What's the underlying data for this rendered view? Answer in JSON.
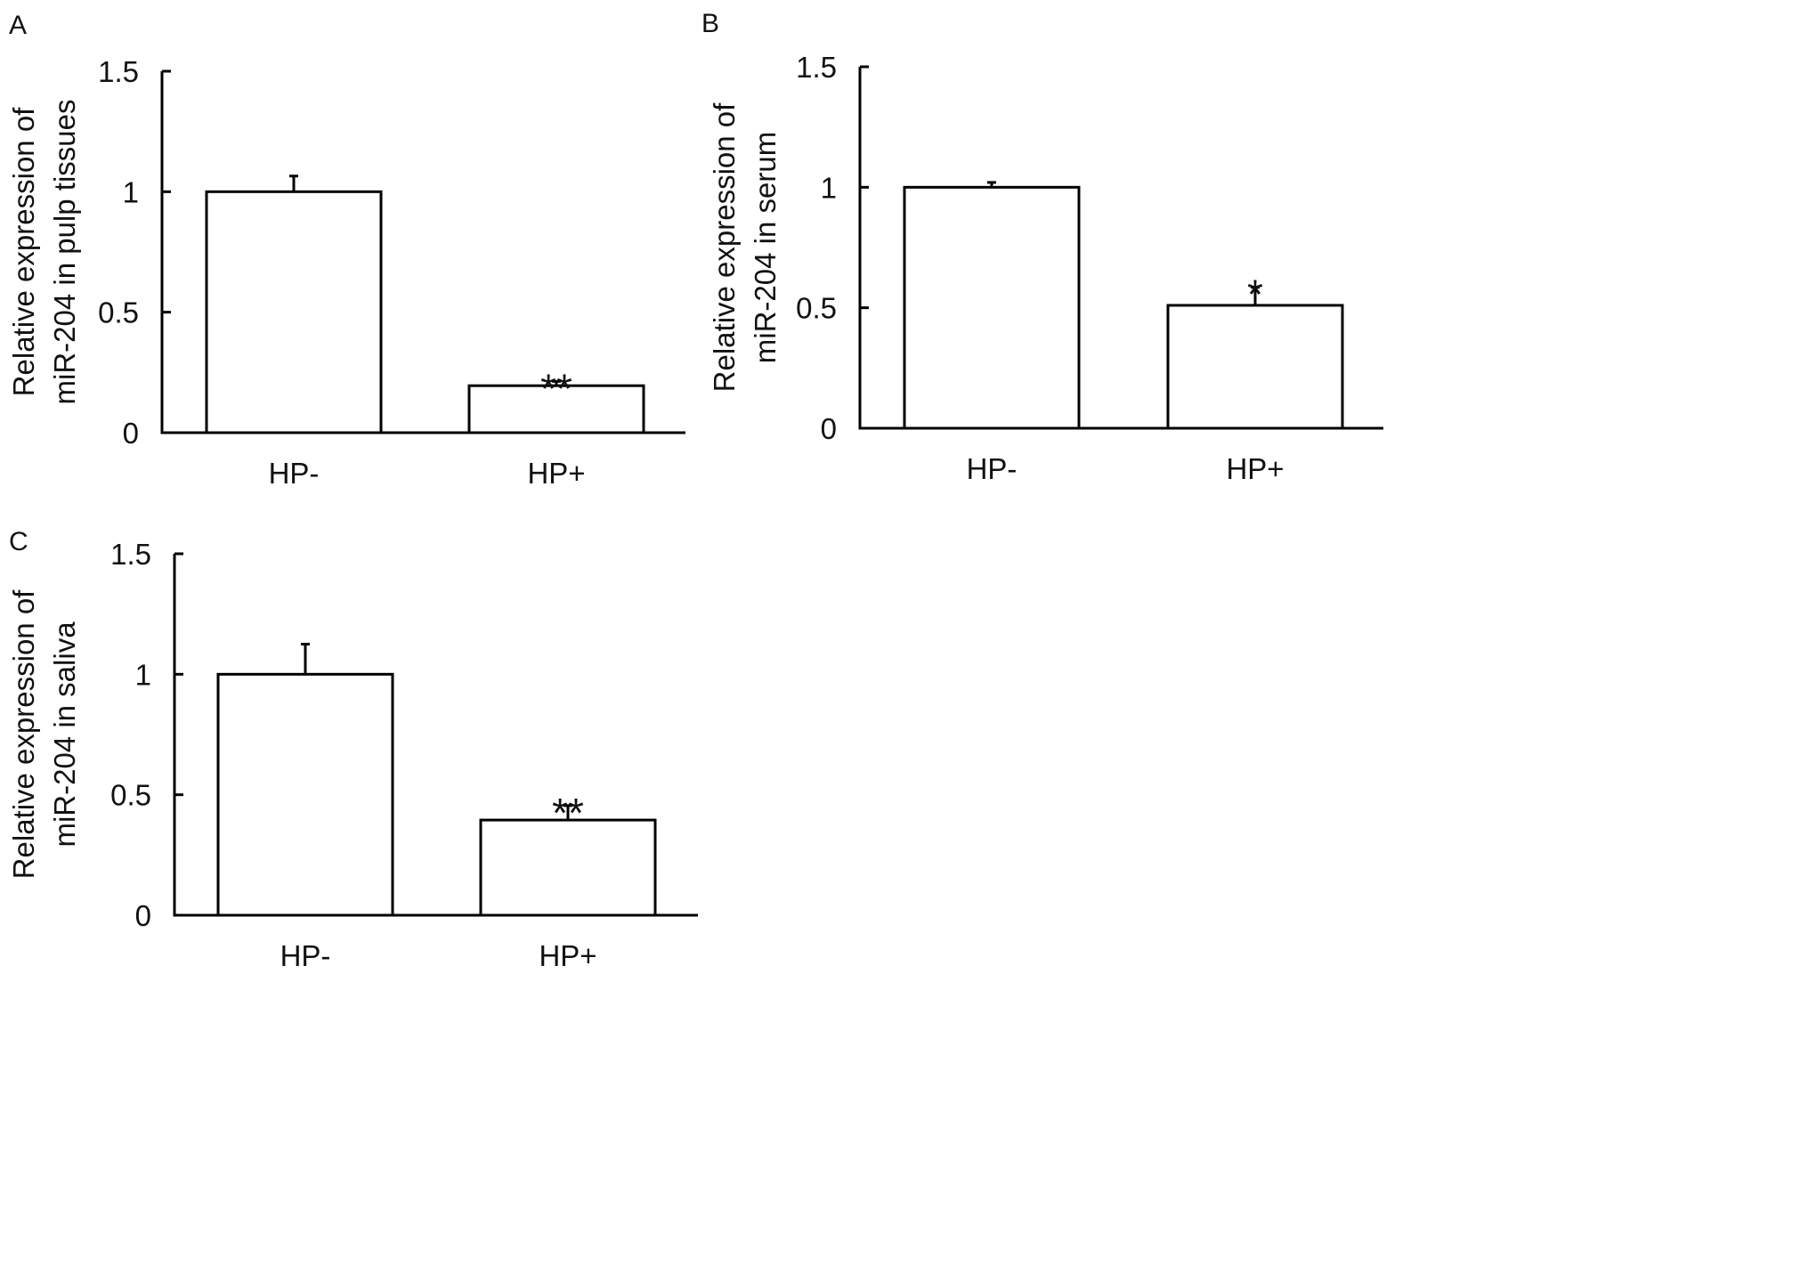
{
  "figure": {
    "panels": [
      {
        "letter": "A"
      },
      {
        "letter": "B"
      },
      {
        "letter": "C"
      }
    ]
  },
  "chart_data": [
    {
      "type": "bar",
      "panel": "A",
      "categories": [
        "HP-",
        "HP+"
      ],
      "values": [
        1.0,
        0.195
      ],
      "error": [
        0.065,
        0.018
      ],
      "significance": [
        "",
        "**"
      ],
      "ylabel": [
        "Relative expression of",
        "miR-204 in pulp tissues"
      ],
      "xlabel": "",
      "ylim": [
        0,
        1.5
      ],
      "yticks": [
        0,
        0.5,
        1,
        1.5
      ],
      "ytick_labels": [
        "0",
        "0.5",
        "1",
        "1.5"
      ],
      "grid": false,
      "bar_fill": "#ffffff",
      "bar_stroke": "#000000"
    },
    {
      "type": "bar",
      "panel": "B",
      "categories": [
        "HP-",
        "HP+"
      ],
      "values": [
        1.0,
        0.51
      ],
      "error": [
        0.02,
        0.075
      ],
      "significance": [
        "",
        "*"
      ],
      "ylabel": [
        "Relative expression of",
        "miR-204 in serum"
      ],
      "xlabel": "",
      "ylim": [
        0,
        1.5
      ],
      "yticks": [
        0,
        0.5,
        1,
        1.5
      ],
      "ytick_labels": [
        "0",
        "0.5",
        "1",
        "1.5"
      ],
      "grid": false,
      "bar_fill": "#ffffff",
      "bar_stroke": "#000000"
    },
    {
      "type": "bar",
      "panel": "C",
      "categories": [
        "HP-",
        "HP+"
      ],
      "values": [
        1.0,
        0.395
      ],
      "error": [
        0.125,
        0.06
      ],
      "significance": [
        "",
        "**"
      ],
      "ylabel": [
        "Relative expression of",
        "miR-204 in saliva"
      ],
      "xlabel": "",
      "ylim": [
        0,
        1.5
      ],
      "yticks": [
        0,
        0.5,
        1,
        1.5
      ],
      "ytick_labels": [
        "0",
        "0.5",
        "1",
        "1.5"
      ],
      "grid": false,
      "bar_fill": "#ffffff",
      "bar_stroke": "#000000"
    }
  ]
}
